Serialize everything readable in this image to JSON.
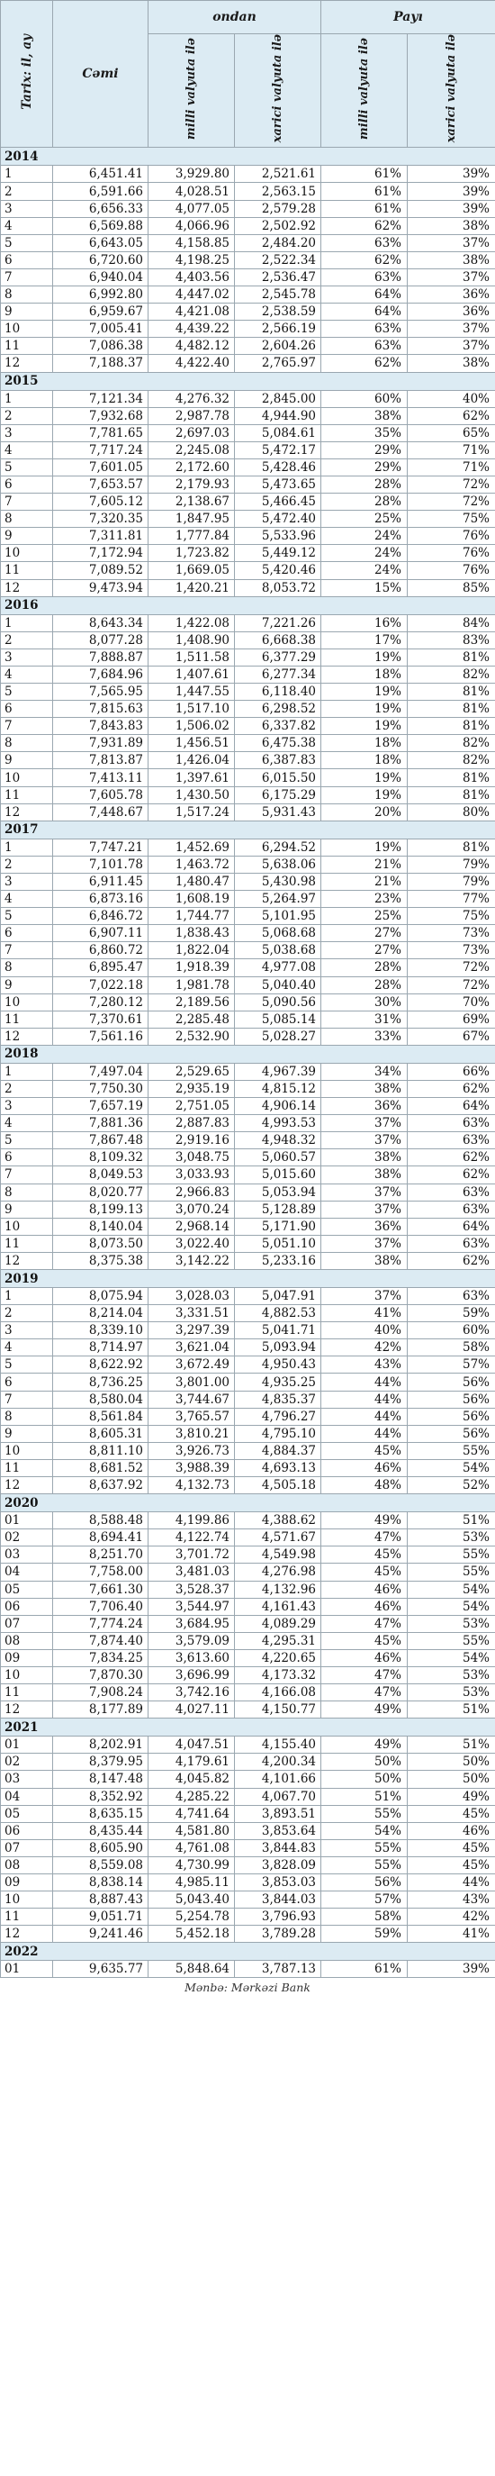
{
  "header": {
    "tarix": "Tarix: il, ay",
    "cemi": "Cəmi",
    "ondan": "ondan",
    "payi": "Payı",
    "milli": "milli valyuta ilə",
    "xarici": "xarici valyuta ilə"
  },
  "years": [
    {
      "year": "2014",
      "rows": [
        [
          "1",
          "6,451.41",
          "3,929.80",
          "2,521.61",
          "61%",
          "39%"
        ],
        [
          "2",
          "6,591.66",
          "4,028.51",
          "2,563.15",
          "61%",
          "39%"
        ],
        [
          "3",
          "6,656.33",
          "4,077.05",
          "2,579.28",
          "61%",
          "39%"
        ],
        [
          "4",
          "6,569.88",
          "4,066.96",
          "2,502.92",
          "62%",
          "38%"
        ],
        [
          "5",
          "6,643.05",
          "4,158.85",
          "2,484.20",
          "63%",
          "37%"
        ],
        [
          "6",
          "6,720.60",
          "4,198.25",
          "2,522.34",
          "62%",
          "38%"
        ],
        [
          "7",
          "6,940.04",
          "4,403.56",
          "2,536.47",
          "63%",
          "37%"
        ],
        [
          "8",
          "6,992.80",
          "4,447.02",
          "2,545.78",
          "64%",
          "36%"
        ],
        [
          "9",
          "6,959.67",
          "4,421.08",
          "2,538.59",
          "64%",
          "36%"
        ],
        [
          "10",
          "7,005.41",
          "4,439.22",
          "2,566.19",
          "63%",
          "37%"
        ],
        [
          "11",
          "7,086.38",
          "4,482.12",
          "2,604.26",
          "63%",
          "37%"
        ],
        [
          "12",
          "7,188.37",
          "4,422.40",
          "2,765.97",
          "62%",
          "38%"
        ]
      ]
    },
    {
      "year": "2015",
      "rows": [
        [
          "1",
          "7,121.34",
          "4,276.32",
          "2,845.00",
          "60%",
          "40%"
        ],
        [
          "2",
          "7,932.68",
          "2,987.78",
          "4,944.90",
          "38%",
          "62%"
        ],
        [
          "3",
          "7,781.65",
          "2,697.03",
          "5,084.61",
          "35%",
          "65%"
        ],
        [
          "4",
          "7,717.24",
          "2,245.08",
          "5,472.17",
          "29%",
          "71%"
        ],
        [
          "5",
          "7,601.05",
          "2,172.60",
          "5,428.46",
          "29%",
          "71%"
        ],
        [
          "6",
          "7,653.57",
          "2,179.93",
          "5,473.65",
          "28%",
          "72%"
        ],
        [
          "7",
          "7,605.12",
          "2,138.67",
          "5,466.45",
          "28%",
          "72%"
        ],
        [
          "8",
          "7,320.35",
          "1,847.95",
          "5,472.40",
          "25%",
          "75%"
        ],
        [
          "9",
          "7,311.81",
          "1,777.84",
          "5,533.96",
          "24%",
          "76%"
        ],
        [
          "10",
          "7,172.94",
          "1,723.82",
          "5,449.12",
          "24%",
          "76%"
        ],
        [
          "11",
          "7,089.52",
          "1,669.05",
          "5,420.46",
          "24%",
          "76%"
        ],
        [
          "12",
          "9,473.94",
          "1,420.21",
          "8,053.72",
          "15%",
          "85%"
        ]
      ]
    },
    {
      "year": "2016",
      "rows": [
        [
          "1",
          "8,643.34",
          "1,422.08",
          "7,221.26",
          "16%",
          "84%"
        ],
        [
          "2",
          "8,077.28",
          "1,408.90",
          "6,668.38",
          "17%",
          "83%"
        ],
        [
          "3",
          "7,888.87",
          "1,511.58",
          "6,377.29",
          "19%",
          "81%"
        ],
        [
          "4",
          "7,684.96",
          "1,407.61",
          "6,277.34",
          "18%",
          "82%"
        ],
        [
          "5",
          "7,565.95",
          "1,447.55",
          "6,118.40",
          "19%",
          "81%"
        ],
        [
          "6",
          "7,815.63",
          "1,517.10",
          "6,298.52",
          "19%",
          "81%"
        ],
        [
          "7",
          "7,843.83",
          "1,506.02",
          "6,337.82",
          "19%",
          "81%"
        ],
        [
          "8",
          "7,931.89",
          "1,456.51",
          "6,475.38",
          "18%",
          "82%"
        ],
        [
          "9",
          "7,813.87",
          "1,426.04",
          "6,387.83",
          "18%",
          "82%"
        ],
        [
          "10",
          "7,413.11",
          "1,397.61",
          "6,015.50",
          "19%",
          "81%"
        ],
        [
          "11",
          "7,605.78",
          "1,430.50",
          "6,175.29",
          "19%",
          "81%"
        ],
        [
          "12",
          "7,448.67",
          "1,517.24",
          "5,931.43",
          "20%",
          "80%"
        ]
      ]
    },
    {
      "year": "2017",
      "rows": [
        [
          "1",
          "7,747.21",
          "1,452.69",
          "6,294.52",
          "19%",
          "81%"
        ],
        [
          "2",
          "7,101.78",
          "1,463.72",
          "5,638.06",
          "21%",
          "79%"
        ],
        [
          "3",
          "6,911.45",
          "1,480.47",
          "5,430.98",
          "21%",
          "79%"
        ],
        [
          "4",
          "6,873.16",
          "1,608.19",
          "5,264.97",
          "23%",
          "77%"
        ],
        [
          "5",
          "6,846.72",
          "1,744.77",
          "5,101.95",
          "25%",
          "75%"
        ],
        [
          "6",
          "6,907.11",
          "1,838.43",
          "5,068.68",
          "27%",
          "73%"
        ],
        [
          "7",
          "6,860.72",
          "1,822.04",
          "5,038.68",
          "27%",
          "73%"
        ],
        [
          "8",
          "6,895.47",
          "1,918.39",
          "4,977.08",
          "28%",
          "72%"
        ],
        [
          "9",
          "7,022.18",
          "1,981.78",
          "5,040.40",
          "28%",
          "72%"
        ],
        [
          "10",
          "7,280.12",
          "2,189.56",
          "5,090.56",
          "30%",
          "70%"
        ],
        [
          "11",
          "7,370.61",
          "2,285.48",
          "5,085.14",
          "31%",
          "69%"
        ],
        [
          "12",
          "7,561.16",
          "2,532.90",
          "5,028.27",
          "33%",
          "67%"
        ]
      ]
    },
    {
      "year": "2018",
      "rows": [
        [
          "1",
          "7,497.04",
          "2,529.65",
          "4,967.39",
          "34%",
          "66%"
        ],
        [
          "2",
          "7,750.30",
          "2,935.19",
          "4,815.12",
          "38%",
          "62%"
        ],
        [
          "3",
          "7,657.19",
          "2,751.05",
          "4,906.14",
          "36%",
          "64%"
        ],
        [
          "4",
          "7,881.36",
          "2,887.83",
          "4,993.53",
          "37%",
          "63%"
        ],
        [
          "5",
          "7,867.48",
          "2,919.16",
          "4,948.32",
          "37%",
          "63%"
        ],
        [
          "6",
          "8,109.32",
          "3,048.75",
          "5,060.57",
          "38%",
          "62%"
        ],
        [
          "7",
          "8,049.53",
          "3,033.93",
          "5,015.60",
          "38%",
          "62%"
        ],
        [
          "8",
          "8,020.77",
          "2,966.83",
          "5,053.94",
          "37%",
          "63%"
        ],
        [
          "9",
          "8,199.13",
          "3,070.24",
          "5,128.89",
          "37%",
          "63%"
        ],
        [
          "10",
          "8,140.04",
          "2,968.14",
          "5,171.90",
          "36%",
          "64%"
        ],
        [
          "11",
          "8,073.50",
          "3,022.40",
          "5,051.10",
          "37%",
          "63%"
        ],
        [
          "12",
          "8,375.38",
          "3,142.22",
          "5,233.16",
          "38%",
          "62%"
        ]
      ]
    },
    {
      "year": "2019",
      "rows": [
        [
          "1",
          "8,075.94",
          "3,028.03",
          "5,047.91",
          "37%",
          "63%"
        ],
        [
          "2",
          "8,214.04",
          "3,331.51",
          "4,882.53",
          "41%",
          "59%"
        ],
        [
          "3",
          "8,339.10",
          "3,297.39",
          "5,041.71",
          "40%",
          "60%"
        ],
        [
          "4",
          "8,714.97",
          "3,621.04",
          "5,093.94",
          "42%",
          "58%"
        ],
        [
          "5",
          "8,622.92",
          "3,672.49",
          "4,950.43",
          "43%",
          "57%"
        ],
        [
          "6",
          "8,736.25",
          "3,801.00",
          "4,935.25",
          "44%",
          "56%"
        ],
        [
          "7",
          "8,580.04",
          "3,744.67",
          "4,835.37",
          "44%",
          "56%"
        ],
        [
          "8",
          "8,561.84",
          "3,765.57",
          "4,796.27",
          "44%",
          "56%"
        ],
        [
          "9",
          "8,605.31",
          "3,810.21",
          "4,795.10",
          "44%",
          "56%"
        ],
        [
          "10",
          "8,811.10",
          "3,926.73",
          "4,884.37",
          "45%",
          "55%"
        ],
        [
          "11",
          "8,681.52",
          "3,988.39",
          "4,693.13",
          "46%",
          "54%"
        ],
        [
          "12",
          "8,637.92",
          "4,132.73",
          "4,505.18",
          "48%",
          "52%"
        ]
      ]
    },
    {
      "year": "2020",
      "rows": [
        [
          "01",
          "8,588.48",
          "4,199.86",
          "4,388.62",
          "49%",
          "51%"
        ],
        [
          "02",
          "8,694.41",
          "4,122.74",
          "4,571.67",
          "47%",
          "53%"
        ],
        [
          "03",
          "8,251.70",
          "3,701.72",
          "4,549.98",
          "45%",
          "55%"
        ],
        [
          "04",
          "7,758.00",
          "3,481.03",
          "4,276.98",
          "45%",
          "55%"
        ],
        [
          "05",
          "7,661.30",
          "3,528.37",
          "4,132.96",
          "46%",
          "54%"
        ],
        [
          "06",
          "7,706.40",
          "3,544.97",
          "4,161.43",
          "46%",
          "54%"
        ],
        [
          "07",
          "7,774.24",
          "3,684.95",
          "4,089.29",
          "47%",
          "53%"
        ],
        [
          "08",
          "7,874.40",
          "3,579.09",
          "4,295.31",
          "45%",
          "55%"
        ],
        [
          "09",
          "7,834.25",
          "3,613.60",
          "4,220.65",
          "46%",
          "54%"
        ],
        [
          "10",
          "7,870.30",
          "3,696.99",
          "4,173.32",
          "47%",
          "53%"
        ],
        [
          "11",
          "7,908.24",
          "3,742.16",
          "4,166.08",
          "47%",
          "53%"
        ],
        [
          "12",
          "8,177.89",
          "4,027.11",
          "4,150.77",
          "49%",
          "51%"
        ]
      ]
    },
    {
      "year": "2021",
      "rows": [
        [
          "01",
          "8,202.91",
          "4,047.51",
          "4,155.40",
          "49%",
          "51%"
        ],
        [
          "02",
          "8,379.95",
          "4,179.61",
          "4,200.34",
          "50%",
          "50%"
        ],
        [
          "03",
          "8,147.48",
          "4,045.82",
          "4,101.66",
          "50%",
          "50%"
        ],
        [
          "04",
          "8,352.92",
          "4,285.22",
          "4,067.70",
          "51%",
          "49%"
        ],
        [
          "05",
          "8,635.15",
          "4,741.64",
          "3,893.51",
          "55%",
          "45%"
        ],
        [
          "06",
          "8,435.44",
          "4,581.80",
          "3,853.64",
          "54%",
          "46%"
        ],
        [
          "07",
          "8,605.90",
          "4,761.08",
          "3,844.83",
          "55%",
          "45%"
        ],
        [
          "08",
          "8,559.08",
          "4,730.99",
          "3,828.09",
          "55%",
          "45%"
        ],
        [
          "09",
          "8,838.14",
          "4,985.11",
          "3,853.03",
          "56%",
          "44%"
        ],
        [
          "10",
          "8,887.43",
          "5,043.40",
          "3,844.03",
          "57%",
          "43%"
        ],
        [
          "11",
          "9,051.71",
          "5,254.78",
          "3,796.93",
          "58%",
          "42%"
        ],
        [
          "12",
          "9,241.46",
          "5,452.18",
          "3,789.28",
          "59%",
          "41%"
        ]
      ]
    },
    {
      "year": "2022",
      "rows": [
        [
          "01",
          "9,635.77",
          "5,848.64",
          "3,787.13",
          "61%",
          "39%"
        ]
      ]
    }
  ],
  "source": "Mənbə: Mərkəzi Bank"
}
